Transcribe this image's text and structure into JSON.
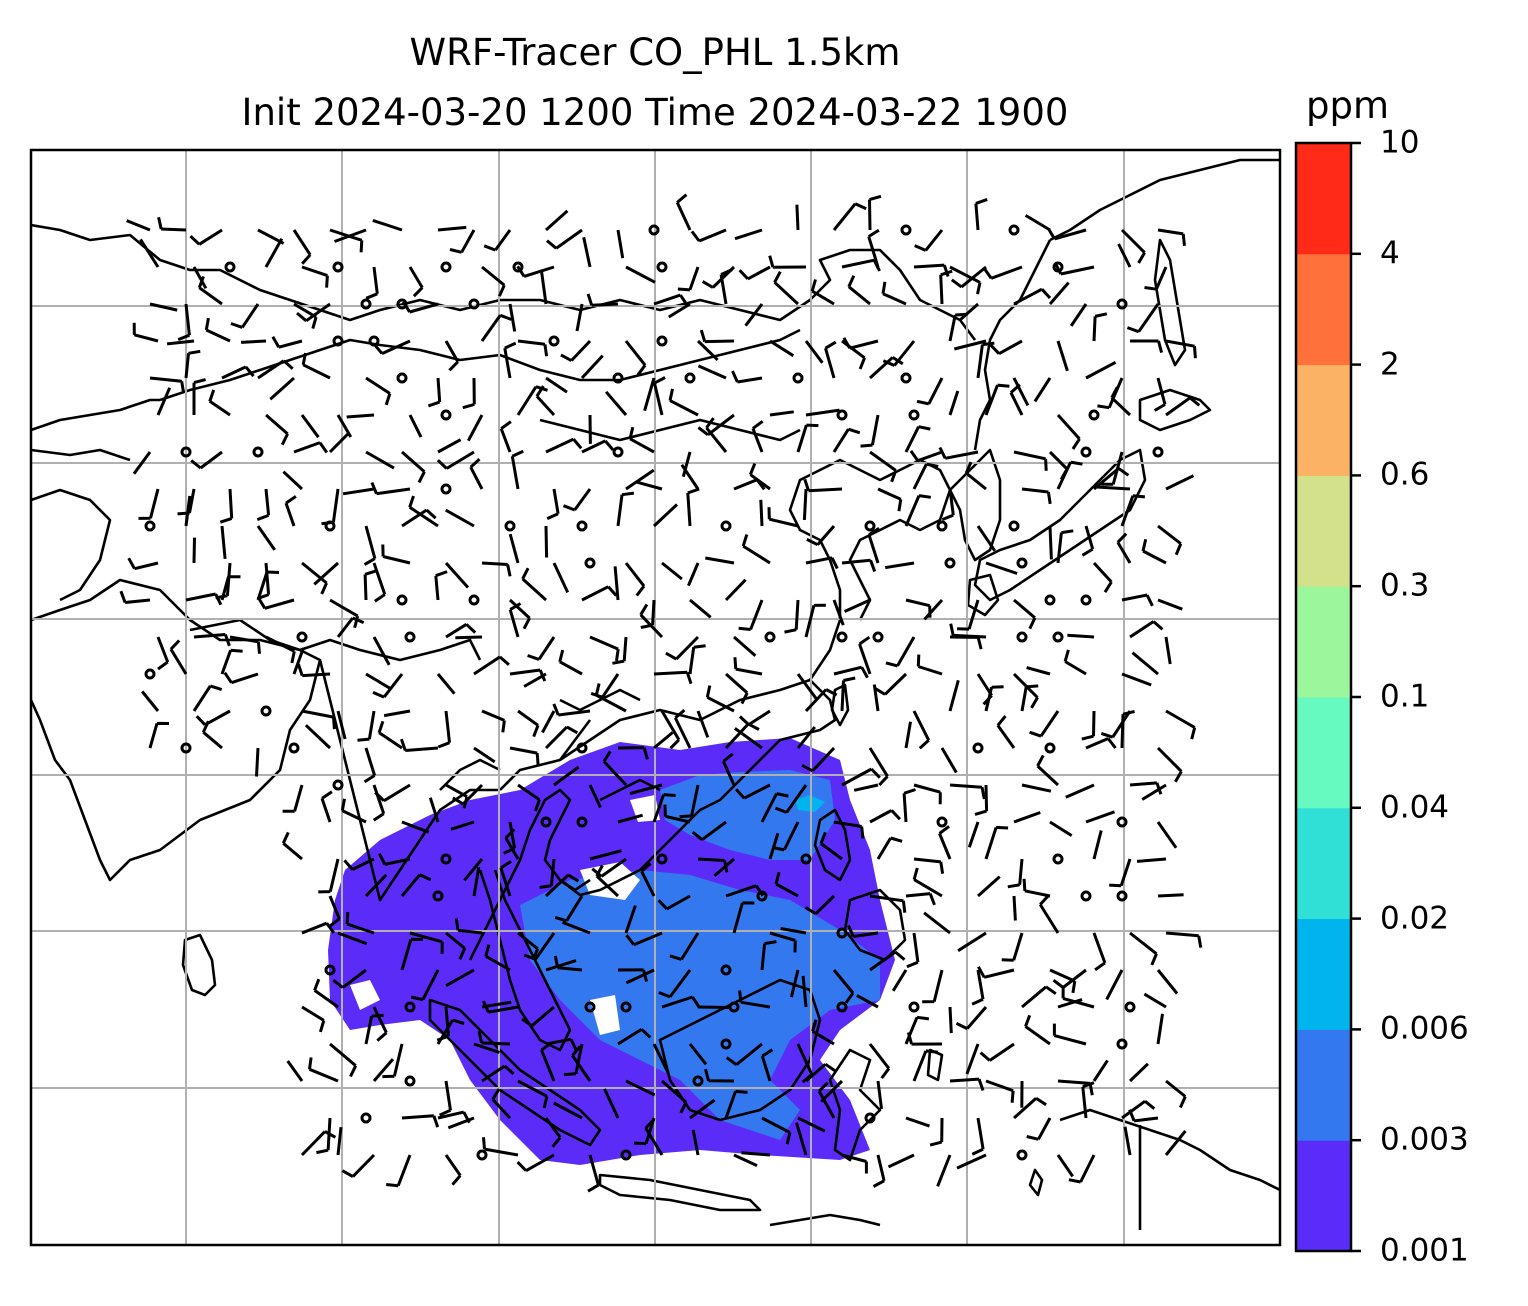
{
  "title": {
    "line1": "WRF-Tracer CO_PHL 1.5km",
    "line2": "Init 2024-03-20 1200 Time 2024-03-22 1900"
  },
  "colorbar": {
    "unit": "ppm",
    "levels": [
      "0.001",
      "0.003",
      "0.006",
      "0.02",
      "0.04",
      "0.1",
      "0.3",
      "0.6",
      "2",
      "4",
      "10"
    ],
    "colors": [
      "#5b2cf8",
      "#3478f0",
      "#00b4ee",
      "#30dfd6",
      "#66fac0",
      "#9cf79c",
      "#d2e18a",
      "#fbb264",
      "#ff703a",
      "#ff2a18"
    ]
  },
  "map": {
    "gridlines": true,
    "plume_colors": {
      "low": "#5b2cf8",
      "mid": "#3478f0",
      "high": "#00b4ee"
    },
    "wind_barbs": true,
    "coastlines": true
  }
}
